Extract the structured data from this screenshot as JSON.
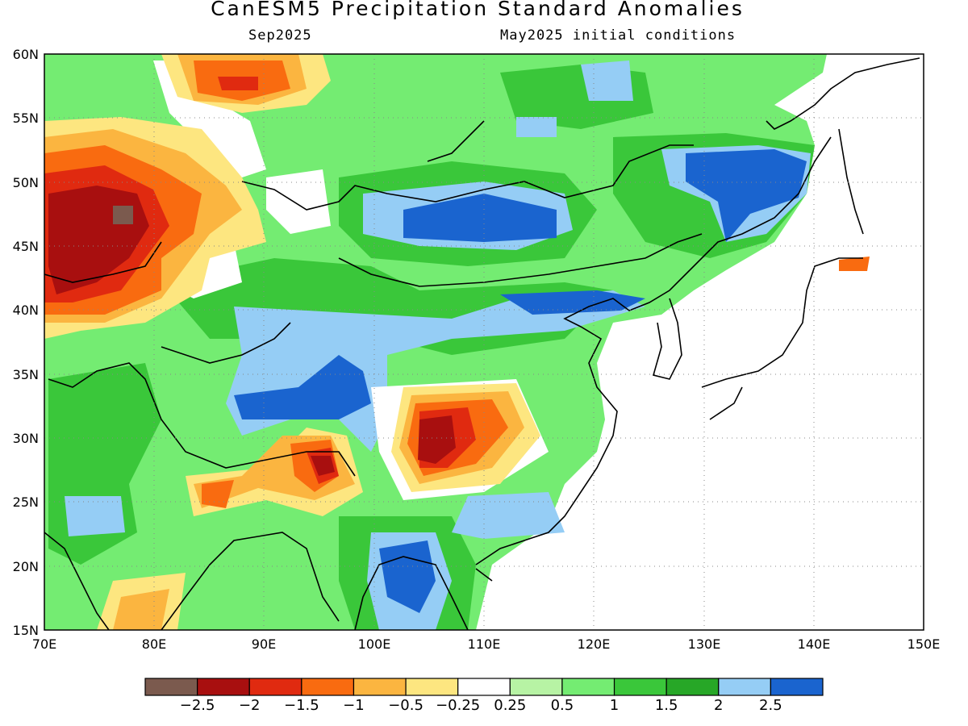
{
  "title": "CanESM5 Precipitation Standard Anomalies",
  "subtitle_left": "Sep2025",
  "subtitle_right": "May2025 initial conditions",
  "map": {
    "lon_range": [
      70,
      150
    ],
    "lat_range": [
      15,
      60
    ],
    "lon_ticks": [
      "70E",
      "80E",
      "90E",
      "100E",
      "110E",
      "120E",
      "130E",
      "140E",
      "150E"
    ],
    "lat_ticks": [
      "60N",
      "55N",
      "50N",
      "45N",
      "40N",
      "35N",
      "30N",
      "25N",
      "20N",
      "15N"
    ],
    "gridlines": "dotted",
    "region": "East and Central Asia"
  },
  "colorbar": {
    "colors": [
      "#7b5a4e",
      "#a80f0f",
      "#e02a10",
      "#f96b10",
      "#fbb540",
      "#fde680",
      "#ffffff",
      "#b7f3a4",
      "#74ec72",
      "#3ac73a",
      "#27a727",
      "#95cdf5",
      "#1a64cf"
    ],
    "tick_labels": [
      "−2.5",
      "−2",
      "−1.5",
      "−1",
      "−0.5",
      "−0.25",
      "0.25",
      "0.5",
      "1",
      "1.5",
      "2",
      "2.5"
    ]
  }
}
